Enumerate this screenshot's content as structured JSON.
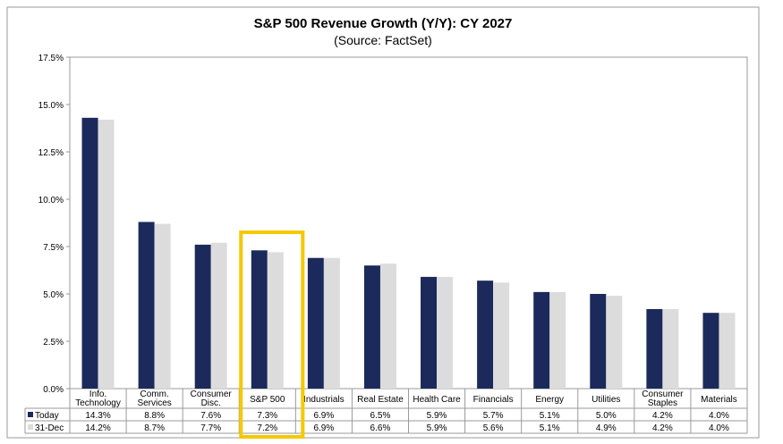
{
  "chart_data": {
    "type": "bar",
    "title": "S&P 500 Revenue Growth (Y/Y): CY 2027",
    "subtitle": "(Source: FactSet)",
    "xlabel": "",
    "ylabel": "",
    "ylim": [
      0,
      17.5
    ],
    "yticks": [
      "0.0%",
      "2.5%",
      "5.0%",
      "7.5%",
      "10.0%",
      "12.5%",
      "15.0%",
      "17.5%"
    ],
    "ytick_values": [
      0,
      2.5,
      5,
      7.5,
      10,
      12.5,
      15,
      17.5
    ],
    "categories": [
      [
        "Info.",
        "Technology"
      ],
      [
        "Comm.",
        "Services"
      ],
      [
        "Consumer",
        "Disc."
      ],
      [
        "S&P 500"
      ],
      [
        "Industrials"
      ],
      [
        "Real Estate"
      ],
      [
        "Health Care"
      ],
      [
        "Financials"
      ],
      [
        "Energy"
      ],
      [
        "Utilities"
      ],
      [
        "Consumer",
        "Staples"
      ],
      [
        "Materials"
      ]
    ],
    "highlighted_category": "S&P 500",
    "series": [
      {
        "name": "Today",
        "color": "#1B2A5A",
        "values": [
          14.3,
          8.8,
          7.6,
          7.3,
          6.9,
          6.5,
          5.9,
          5.7,
          5.1,
          5.0,
          4.2,
          4.0
        ],
        "labels": [
          "14.3%",
          "8.8%",
          "7.6%",
          "7.3%",
          "6.9%",
          "6.5%",
          "5.9%",
          "5.7%",
          "5.1%",
          "5.0%",
          "4.2%",
          "4.0%"
        ]
      },
      {
        "name": "31-Dec",
        "color": "#DCDCDC",
        "values": [
          14.2,
          8.7,
          7.7,
          7.2,
          6.9,
          6.6,
          5.9,
          5.6,
          5.1,
          4.9,
          4.2,
          4.0
        ],
        "labels": [
          "14.2%",
          "8.7%",
          "7.7%",
          "7.2%",
          "6.9%",
          "6.6%",
          "5.9%",
          "5.6%",
          "5.1%",
          "4.9%",
          "4.2%",
          "4.0%"
        ]
      }
    ],
    "grid": false,
    "legend": "data-table-bottom",
    "highlight_color": "#F5C800"
  }
}
